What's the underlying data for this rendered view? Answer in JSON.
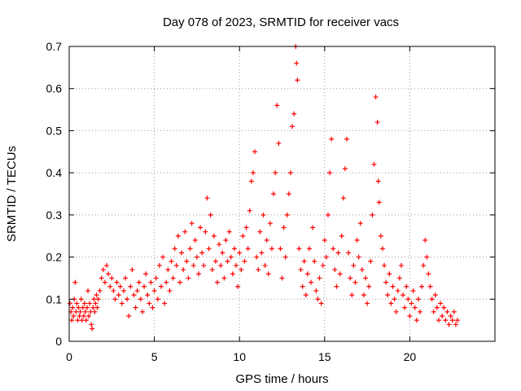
{
  "chart_data": {
    "type": "scatter",
    "title": "Day 078 of 2023, SRMTID for receiver vacs",
    "xlabel": "GPS time / hours",
    "ylabel": "SRMTID / TECUs",
    "xlim": [
      0,
      25
    ],
    "ylim": [
      0,
      0.7
    ],
    "xticks": [
      0,
      5,
      10,
      15,
      20
    ],
    "xtick_labels": [
      "0",
      "5",
      "10",
      "15",
      "20"
    ],
    "yticks": [
      0,
      0.1,
      0.2,
      0.3,
      0.4,
      0.5,
      0.6,
      0.7
    ],
    "ytick_labels": [
      "0",
      "0.1",
      "0.2",
      "0.3",
      "0.4",
      "0.5",
      "0.6",
      "0.7"
    ],
    "grid": true,
    "marker": "+",
    "color": "#ff0000",
    "series": [
      {
        "name": "SRMTID",
        "points": [
          [
            0.05,
            0.09
          ],
          [
            0.1,
            0.07
          ],
          [
            0.15,
            0.05
          ],
          [
            0.2,
            0.08
          ],
          [
            0.25,
            0.06
          ],
          [
            0.3,
            0.1
          ],
          [
            0.35,
            0.14
          ],
          [
            0.4,
            0.07
          ],
          [
            0.45,
            0.09
          ],
          [
            0.5,
            0.05
          ],
          [
            0.55,
            0.08
          ],
          [
            0.6,
            0.06
          ],
          [
            0.65,
            0.07
          ],
          [
            0.7,
            0.1
          ],
          [
            0.75,
            0.05
          ],
          [
            0.8,
            0.08
          ],
          [
            0.85,
            0.06
          ],
          [
            0.9,
            0.09
          ],
          [
            0.95,
            0.07
          ],
          [
            1.0,
            0.05
          ],
          [
            1.05,
            0.08
          ],
          [
            1.1,
            0.12
          ],
          [
            1.15,
            0.06
          ],
          [
            1.2,
            0.09
          ],
          [
            1.25,
            0.07
          ],
          [
            1.3,
            0.04
          ],
          [
            1.35,
            0.03
          ],
          [
            1.4,
            0.08
          ],
          [
            1.45,
            0.1
          ],
          [
            1.5,
            0.07
          ],
          [
            1.55,
            0.09
          ],
          [
            1.6,
            0.11
          ],
          [
            1.65,
            0.08
          ],
          [
            1.7,
            0.1
          ],
          [
            1.8,
            0.12
          ],
          [
            1.9,
            0.15
          ],
          [
            2.0,
            0.17
          ],
          [
            2.1,
            0.14
          ],
          [
            2.2,
            0.18
          ],
          [
            2.3,
            0.16
          ],
          [
            2.4,
            0.13
          ],
          [
            2.5,
            0.15
          ],
          [
            2.6,
            0.12
          ],
          [
            2.7,
            0.1
          ],
          [
            2.8,
            0.14
          ],
          [
            2.9,
            0.11
          ],
          [
            3.0,
            0.13
          ],
          [
            3.1,
            0.09
          ],
          [
            3.2,
            0.12
          ],
          [
            3.3,
            0.15
          ],
          [
            3.4,
            0.1
          ],
          [
            3.5,
            0.06
          ],
          [
            3.6,
            0.13
          ],
          [
            3.7,
            0.17
          ],
          [
            3.8,
            0.11
          ],
          [
            3.9,
            0.08
          ],
          [
            4.0,
            0.12
          ],
          [
            4.1,
            0.14
          ],
          [
            4.2,
            0.1
          ],
          [
            4.3,
            0.07
          ],
          [
            4.4,
            0.13
          ],
          [
            4.5,
            0.16
          ],
          [
            4.6,
            0.11
          ],
          [
            4.7,
            0.09
          ],
          [
            4.8,
            0.14
          ],
          [
            4.9,
            0.08
          ],
          [
            5.0,
            0.12
          ],
          [
            5.1,
            0.15
          ],
          [
            5.2,
            0.1
          ],
          [
            5.3,
            0.18
          ],
          [
            5.4,
            0.13
          ],
          [
            5.5,
            0.2
          ],
          [
            5.6,
            0.09
          ],
          [
            5.7,
            0.14
          ],
          [
            5.8,
            0.17
          ],
          [
            5.9,
            0.12
          ],
          [
            6.0,
            0.19
          ],
          [
            6.1,
            0.15
          ],
          [
            6.2,
            0.22
          ],
          [
            6.3,
            0.18
          ],
          [
            6.4,
            0.25
          ],
          [
            6.5,
            0.14
          ],
          [
            6.6,
            0.21
          ],
          [
            6.7,
            0.17
          ],
          [
            6.8,
            0.26
          ],
          [
            6.9,
            0.19
          ],
          [
            7.0,
            0.15
          ],
          [
            7.1,
            0.22
          ],
          [
            7.2,
            0.28
          ],
          [
            7.3,
            0.18
          ],
          [
            7.4,
            0.24
          ],
          [
            7.5,
            0.2
          ],
          [
            7.6,
            0.16
          ],
          [
            7.7,
            0.27
          ],
          [
            7.8,
            0.21
          ],
          [
            7.9,
            0.18
          ],
          [
            8.0,
            0.26
          ],
          [
            8.1,
            0.34
          ],
          [
            8.2,
            0.22
          ],
          [
            8.3,
            0.3
          ],
          [
            8.4,
            0.17
          ],
          [
            8.5,
            0.25
          ],
          [
            8.6,
            0.19
          ],
          [
            8.7,
            0.14
          ],
          [
            8.8,
            0.23
          ],
          [
            8.9,
            0.18
          ],
          [
            9.0,
            0.21
          ],
          [
            9.1,
            0.15
          ],
          [
            9.2,
            0.24
          ],
          [
            9.3,
            0.19
          ],
          [
            9.4,
            0.26
          ],
          [
            9.5,
            0.2
          ],
          [
            9.6,
            0.16
          ],
          [
            9.7,
            0.22
          ],
          [
            9.8,
            0.18
          ],
          [
            9.9,
            0.13
          ],
          [
            10.0,
            0.21
          ],
          [
            10.1,
            0.17
          ],
          [
            10.2,
            0.25
          ],
          [
            10.3,
            0.19
          ],
          [
            10.4,
            0.27
          ],
          [
            10.5,
            0.22
          ],
          [
            10.6,
            0.31
          ],
          [
            10.7,
            0.38
          ],
          [
            10.8,
            0.4
          ],
          [
            10.9,
            0.45
          ],
          [
            11.0,
            0.2
          ],
          [
            11.1,
            0.17
          ],
          [
            11.2,
            0.26
          ],
          [
            11.3,
            0.21
          ],
          [
            11.4,
            0.3
          ],
          [
            11.5,
            0.18
          ],
          [
            11.6,
            0.24
          ],
          [
            11.7,
            0.16
          ],
          [
            11.8,
            0.28
          ],
          [
            11.9,
            0.22
          ],
          [
            12.0,
            0.35
          ],
          [
            12.1,
            0.4
          ],
          [
            12.2,
            0.56
          ],
          [
            12.3,
            0.47
          ],
          [
            12.4,
            0.22
          ],
          [
            12.5,
            0.15
          ],
          [
            12.6,
            0.27
          ],
          [
            12.7,
            0.2
          ],
          [
            12.8,
            0.3
          ],
          [
            12.9,
            0.35
          ],
          [
            13.0,
            0.4
          ],
          [
            13.1,
            0.51
          ],
          [
            13.2,
            0.54
          ],
          [
            13.3,
            0.7
          ],
          [
            13.35,
            0.66
          ],
          [
            13.4,
            0.62
          ],
          [
            13.5,
            0.22
          ],
          [
            13.6,
            0.17
          ],
          [
            13.7,
            0.13
          ],
          [
            13.8,
            0.19
          ],
          [
            13.9,
            0.11
          ],
          [
            14.0,
            0.16
          ],
          [
            14.1,
            0.22
          ],
          [
            14.2,
            0.14
          ],
          [
            14.3,
            0.27
          ],
          [
            14.4,
            0.19
          ],
          [
            14.5,
            0.12
          ],
          [
            14.6,
            0.1
          ],
          [
            14.7,
            0.15
          ],
          [
            14.8,
            0.09
          ],
          [
            14.9,
            0.18
          ],
          [
            15.0,
            0.24
          ],
          [
            15.1,
            0.2
          ],
          [
            15.2,
            0.3
          ],
          [
            15.3,
            0.4
          ],
          [
            15.4,
            0.48
          ],
          [
            15.5,
            0.22
          ],
          [
            15.6,
            0.17
          ],
          [
            15.7,
            0.13
          ],
          [
            15.8,
            0.21
          ],
          [
            15.9,
            0.16
          ],
          [
            16.0,
            0.25
          ],
          [
            16.1,
            0.34
          ],
          [
            16.2,
            0.41
          ],
          [
            16.3,
            0.48
          ],
          [
            16.4,
            0.21
          ],
          [
            16.5,
            0.15
          ],
          [
            16.6,
            0.11
          ],
          [
            16.7,
            0.18
          ],
          [
            16.8,
            0.14
          ],
          [
            16.9,
            0.24
          ],
          [
            17.0,
            0.2
          ],
          [
            17.1,
            0.28
          ],
          [
            17.2,
            0.17
          ],
          [
            17.3,
            0.11
          ],
          [
            17.4,
            0.15
          ],
          [
            17.5,
            0.09
          ],
          [
            17.6,
            0.13
          ],
          [
            17.7,
            0.19
          ],
          [
            17.8,
            0.3
          ],
          [
            17.9,
            0.42
          ],
          [
            18.0,
            0.58
          ],
          [
            18.1,
            0.52
          ],
          [
            18.15,
            0.38
          ],
          [
            18.2,
            0.33
          ],
          [
            18.3,
            0.25
          ],
          [
            18.4,
            0.22
          ],
          [
            18.5,
            0.18
          ],
          [
            18.6,
            0.14
          ],
          [
            18.7,
            0.11
          ],
          [
            18.8,
            0.16
          ],
          [
            18.9,
            0.09
          ],
          [
            19.0,
            0.13
          ],
          [
            19.1,
            0.1
          ],
          [
            19.2,
            0.07
          ],
          [
            19.3,
            0.12
          ],
          [
            19.4,
            0.15
          ],
          [
            19.5,
            0.18
          ],
          [
            19.6,
            0.11
          ],
          [
            19.7,
            0.08
          ],
          [
            19.8,
            0.13
          ],
          [
            19.9,
            0.1
          ],
          [
            20.0,
            0.06
          ],
          [
            20.1,
            0.09
          ],
          [
            20.2,
            0.12
          ],
          [
            20.3,
            0.08
          ],
          [
            20.4,
            0.05
          ],
          [
            20.5,
            0.1
          ],
          [
            20.6,
            0.07
          ],
          [
            20.7,
            0.13
          ],
          [
            20.8,
            0.18
          ],
          [
            20.9,
            0.24
          ],
          [
            21.0,
            0.2
          ],
          [
            21.1,
            0.16
          ],
          [
            21.2,
            0.13
          ],
          [
            21.3,
            0.1
          ],
          [
            21.4,
            0.07
          ],
          [
            21.5,
            0.11
          ],
          [
            21.6,
            0.08
          ],
          [
            21.7,
            0.05
          ],
          [
            21.8,
            0.09
          ],
          [
            21.9,
            0.06
          ],
          [
            22.0,
            0.08
          ],
          [
            22.1,
            0.05
          ],
          [
            22.2,
            0.07
          ],
          [
            22.3,
            0.04
          ],
          [
            22.4,
            0.06
          ],
          [
            22.5,
            0.05
          ],
          [
            22.6,
            0.07
          ],
          [
            22.7,
            0.04
          ],
          [
            22.8,
            0.05
          ]
        ]
      }
    ]
  }
}
